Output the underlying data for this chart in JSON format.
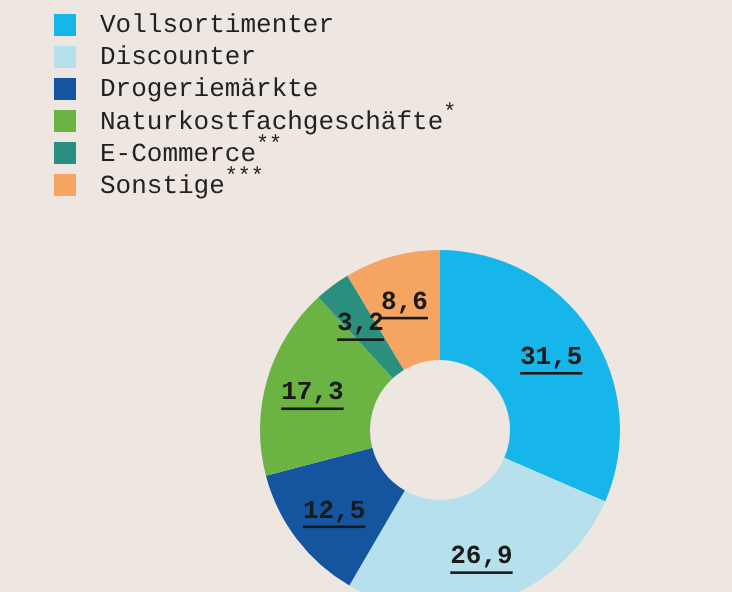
{
  "chart_data": {
    "type": "donut",
    "legend": "top left",
    "categories": [
      "Vollsortimenter",
      "Discounter",
      "Drogeriemärkte",
      "Naturkostfachgeschäfte$^{*}$",
      "E-Commerce$^{**}$",
      "Sonstige$^{***}$"
    ],
    "values": [
      31.5,
      26.9,
      12.5,
      17.3,
      3.2,
      8.6
    ],
    "value_labels": [
      "31,5",
      "26,9",
      "12,5",
      "17,3",
      "3,2",
      "8,6"
    ],
    "colors": [
      "#17b6ea",
      "#b5e0ec",
      "#15559f",
      "#6bb444",
      "#2a8f7f",
      "#f5a462"
    ]
  }
}
